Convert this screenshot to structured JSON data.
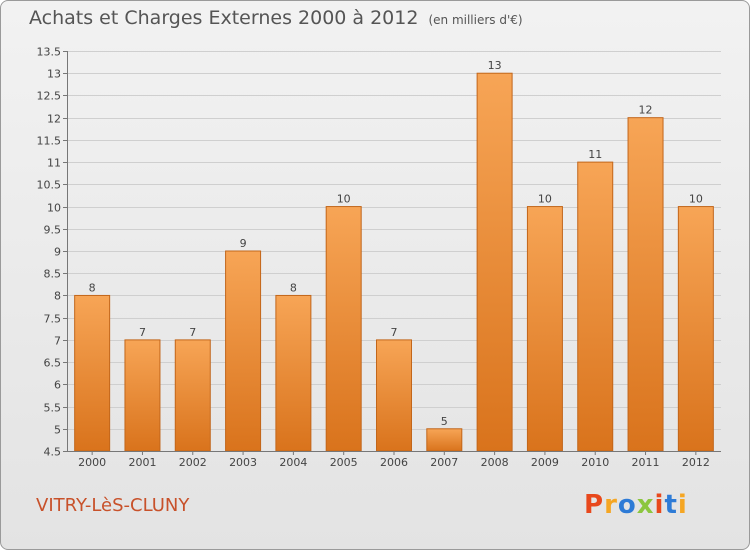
{
  "header": {
    "title": "Achats et Charges Externes 2000 à 2012",
    "subtitle": "(en milliers d'€)"
  },
  "footer": {
    "place": "VITRY-LèS-CLUNY",
    "logo": "Proxiti",
    "logo_colors": [
      "#e8481c",
      "#f5a623",
      "#2e7bd6",
      "#8cc63f",
      "#e8481c",
      "#2e7bd6",
      "#f5a623"
    ]
  },
  "chart_data": {
    "type": "bar",
    "categories": [
      "2000",
      "2001",
      "2002",
      "2003",
      "2004",
      "2005",
      "2006",
      "2007",
      "2008",
      "2009",
      "2010",
      "2011",
      "2012"
    ],
    "values": [
      8,
      7,
      7,
      9,
      8,
      10,
      7,
      5,
      13,
      10,
      11,
      12,
      10
    ],
    "data_labels": [
      "8",
      "7",
      "7",
      "9",
      "8",
      "10",
      "7",
      "5",
      "13",
      "10",
      "11",
      "12",
      "10"
    ],
    "ylim": [
      4.5,
      13.5
    ],
    "yticks": [
      "4.5",
      "5",
      "5.5",
      "6",
      "6.5",
      "7",
      "7.5",
      "8",
      "8.5",
      "9",
      "9.5",
      "10",
      "10.5",
      "11",
      "11.5",
      "12",
      "12.5",
      "13",
      "13.5"
    ],
    "grid": true,
    "bar_color_top": "#f7a556",
    "bar_color_bottom": "#d9731c",
    "bar_stroke": "#c2661a",
    "title": "Achats et Charges Externes 2000 à 2012",
    "xlabel": "",
    "ylabel": ""
  }
}
